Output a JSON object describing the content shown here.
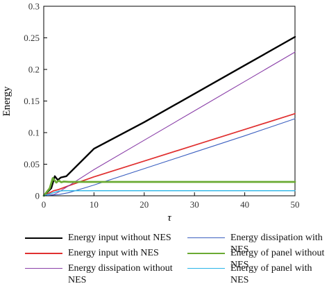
{
  "chart_data": {
    "type": "line",
    "xlabel": "τ",
    "ylabel": "Energy",
    "xlim": [
      0,
      50
    ],
    "ylim": [
      0,
      0.3
    ],
    "xticks": [
      0,
      10,
      20,
      30,
      40,
      50
    ],
    "xtick_labels": [
      "0",
      "10",
      "20",
      "30",
      "40",
      "50"
    ],
    "yticks": [
      0,
      0.05,
      0.1,
      0.15,
      0.2,
      0.25,
      0.3
    ],
    "ytick_labels": [
      "0",
      "0.05",
      "0.1",
      "0.15",
      "0.2",
      "0.25",
      "0.3"
    ],
    "grid": false,
    "legend_position": "bottom",
    "series": [
      {
        "name": "Energy input without NES",
        "color": "#000000",
        "x": [
          0,
          1.5,
          2.2,
          2.8,
          3.4,
          4.5,
          10,
          20,
          30,
          40,
          50
        ],
        "y": [
          0,
          0.012,
          0.031,
          0.025,
          0.029,
          0.031,
          0.0745,
          0.1165,
          0.1615,
          0.2065,
          0.2515
        ]
      },
      {
        "name": "Energy input with NES",
        "color": "#e03030",
        "x": [
          0,
          2,
          3,
          5,
          10,
          20,
          30,
          40,
          50
        ],
        "y": [
          0,
          0.008,
          0.01,
          0.016,
          0.03,
          0.055,
          0.08,
          0.105,
          0.13
        ]
      },
      {
        "name": "Energy dissipation without NES",
        "color": "#8a3fa8",
        "x": [
          0,
          2,
          3,
          5,
          10,
          20,
          30,
          40,
          50
        ],
        "y": [
          0,
          0.002,
          0.006,
          0.016,
          0.0415,
          0.088,
          0.1345,
          0.181,
          0.2275
        ]
      },
      {
        "name": "Energy dissipation with NES",
        "color": "#3b5fc0",
        "x": [
          0,
          3,
          5,
          10,
          20,
          30,
          40,
          50
        ],
        "y": [
          0,
          0.002,
          0.005,
          0.017,
          0.043,
          0.069,
          0.095,
          0.122
        ]
      },
      {
        "name": "Energy of panel without NES",
        "color": "#6aaa32",
        "x": [
          0,
          1.2,
          1.8,
          2.5,
          3.0,
          3.5,
          4.0,
          5,
          50
        ],
        "y": [
          0,
          0.012,
          0.028,
          0.021,
          0.024,
          0.0215,
          0.0225,
          0.022,
          0.022
        ]
      },
      {
        "name": "Energy of panel with NES",
        "color": "#29b5e8",
        "x": [
          0,
          2,
          3,
          4,
          5,
          50
        ],
        "y": [
          0,
          0.005,
          0.0075,
          0.008,
          0.008,
          0.008
        ]
      }
    ],
    "series_widths": [
      2.4,
      1.8,
      1.1,
      1.1,
      2.8,
      1.4
    ]
  },
  "legend": {
    "items": [
      "Energy input without NES",
      "Energy dissipation with NES",
      "Energy input with NES",
      "Energy of panel without NES",
      "Energy dissipation without NES",
      "Energy of panel with NES"
    ],
    "colors": [
      "#000000",
      "#3b5fc0",
      "#e03030",
      "#6aaa32",
      "#8a3fa8",
      "#29b5e8"
    ]
  }
}
